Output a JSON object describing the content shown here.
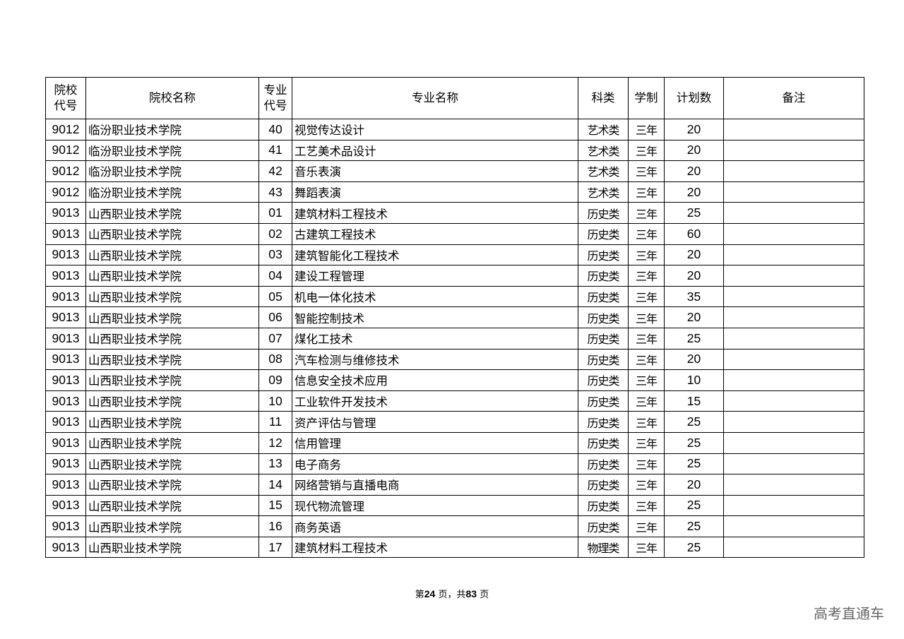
{
  "table": {
    "headers": {
      "school_code": [
        "院校",
        "代号"
      ],
      "school_name": "院校名称",
      "major_code": [
        "专业",
        "代号"
      ],
      "major_name": "专业名称",
      "category": "科类",
      "duration": "学制",
      "plan": "计划数",
      "remarks": "备注"
    },
    "rows": [
      [
        "9012",
        "临汾职业技术学院",
        "40",
        "视觉传达设计",
        "艺术类",
        "三年",
        "20",
        ""
      ],
      [
        "9012",
        "临汾职业技术学院",
        "41",
        "工艺美术品设计",
        "艺术类",
        "三年",
        "20",
        ""
      ],
      [
        "9012",
        "临汾职业技术学院",
        "42",
        "音乐表演",
        "艺术类",
        "三年",
        "20",
        ""
      ],
      [
        "9012",
        "临汾职业技术学院",
        "43",
        "舞蹈表演",
        "艺术类",
        "三年",
        "20",
        ""
      ],
      [
        "9013",
        "山西职业技术学院",
        "01",
        "建筑材料工程技术",
        "历史类",
        "三年",
        "25",
        ""
      ],
      [
        "9013",
        "山西职业技术学院",
        "02",
        "古建筑工程技术",
        "历史类",
        "三年",
        "60",
        ""
      ],
      [
        "9013",
        "山西职业技术学院",
        "03",
        "建筑智能化工程技术",
        "历史类",
        "三年",
        "20",
        ""
      ],
      [
        "9013",
        "山西职业技术学院",
        "04",
        "建设工程管理",
        "历史类",
        "三年",
        "20",
        ""
      ],
      [
        "9013",
        "山西职业技术学院",
        "05",
        "机电一体化技术",
        "历史类",
        "三年",
        "35",
        ""
      ],
      [
        "9013",
        "山西职业技术学院",
        "06",
        "智能控制技术",
        "历史类",
        "三年",
        "20",
        ""
      ],
      [
        "9013",
        "山西职业技术学院",
        "07",
        "煤化工技术",
        "历史类",
        "三年",
        "25",
        ""
      ],
      [
        "9013",
        "山西职业技术学院",
        "08",
        "汽车检测与维修技术",
        "历史类",
        "三年",
        "20",
        ""
      ],
      [
        "9013",
        "山西职业技术学院",
        "09",
        "信息安全技术应用",
        "历史类",
        "三年",
        "10",
        ""
      ],
      [
        "9013",
        "山西职业技术学院",
        "10",
        "工业软件开发技术",
        "历史类",
        "三年",
        "15",
        ""
      ],
      [
        "9013",
        "山西职业技术学院",
        "11",
        "资产评估与管理",
        "历史类",
        "三年",
        "25",
        ""
      ],
      [
        "9013",
        "山西职业技术学院",
        "12",
        "信用管理",
        "历史类",
        "三年",
        "25",
        ""
      ],
      [
        "9013",
        "山西职业技术学院",
        "13",
        "电子商务",
        "历史类",
        "三年",
        "25",
        ""
      ],
      [
        "9013",
        "山西职业技术学院",
        "14",
        "网络营销与直播电商",
        "历史类",
        "三年",
        "20",
        ""
      ],
      [
        "9013",
        "山西职业技术学院",
        "15",
        "现代物流管理",
        "历史类",
        "三年",
        "25",
        ""
      ],
      [
        "9013",
        "山西职业技术学院",
        "16",
        "商务英语",
        "历史类",
        "三年",
        "25",
        ""
      ],
      [
        "9013",
        "山西职业技术学院",
        "17",
        "建筑材料工程技术",
        "物理类",
        "三年",
        "25",
        ""
      ]
    ]
  },
  "footer": {
    "prefix": "第",
    "page": "24",
    "middle": "页，共",
    "total": "83",
    "suffix": "页"
  },
  "watermark": "高考直通车"
}
